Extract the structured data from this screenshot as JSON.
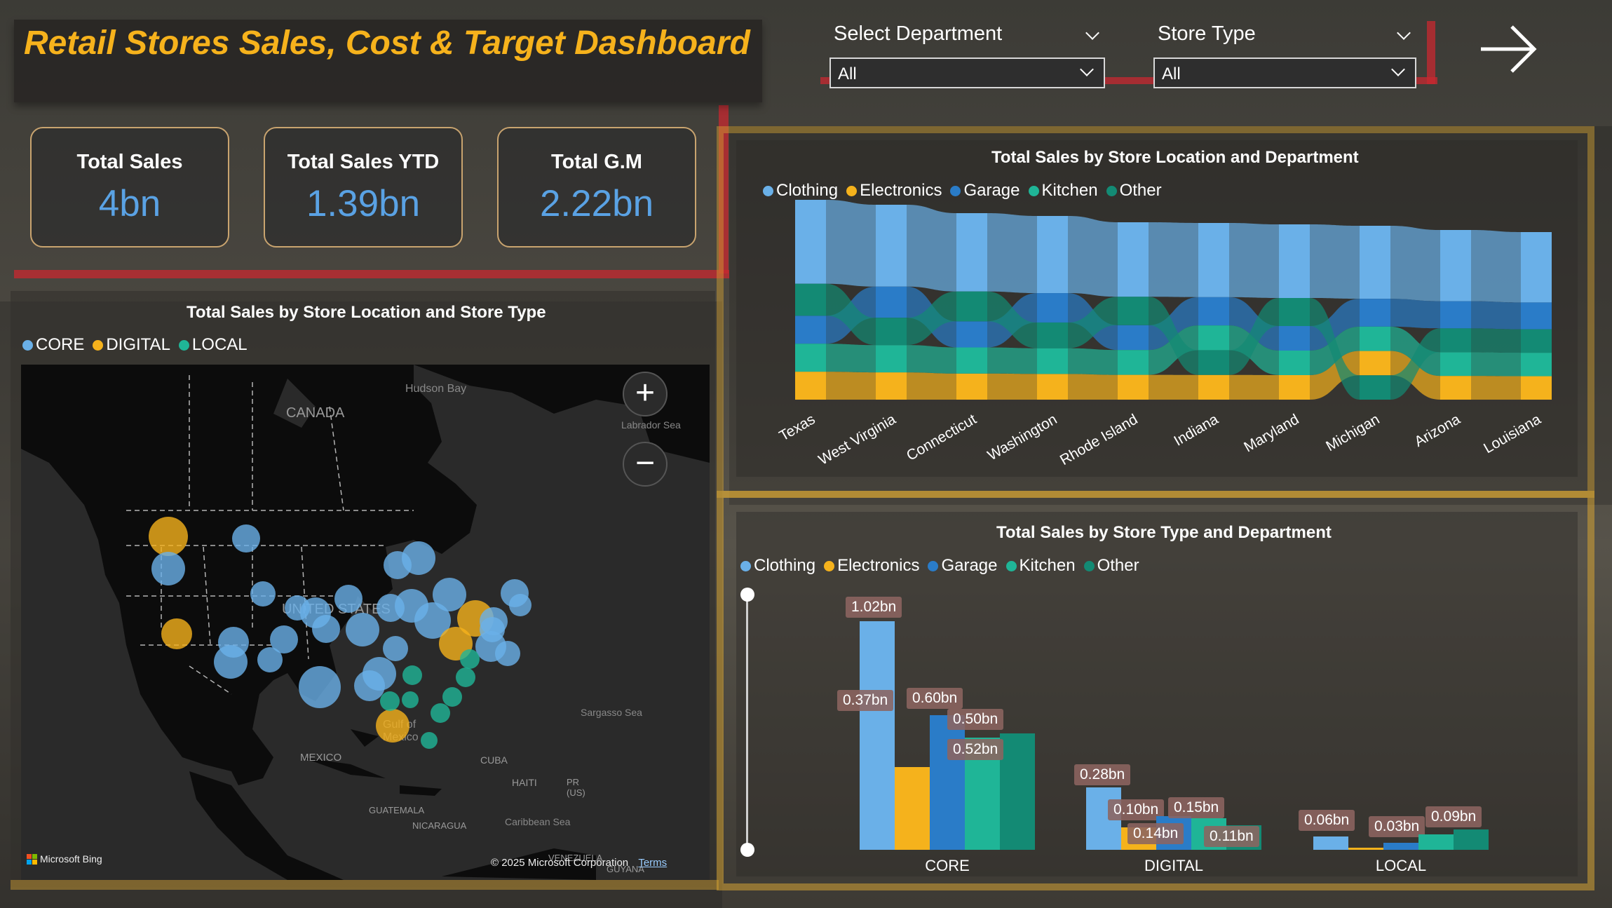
{
  "header": {
    "title": "Retail Stores Sales, Cost & Target Dashboard"
  },
  "filters": [
    {
      "label": "Select Department",
      "value": "All"
    },
    {
      "label": "Store Type",
      "value": "All"
    }
  ],
  "nav": {
    "icon": "arrow-right-icon"
  },
  "kpis": [
    {
      "label": "Total Sales",
      "value": "4bn"
    },
    {
      "label": "Total Sales YTD",
      "value": "1.39bn"
    },
    {
      "label": "Total G.M",
      "value": "2.22bn"
    }
  ],
  "map": {
    "title": "Total Sales by Store Location and Store Type",
    "legend": [
      {
        "name": "CORE",
        "color": "#6ab0e8"
      },
      {
        "name": "DIGITAL",
        "color": "#f5b21c"
      },
      {
        "name": "LOCAL",
        "color": "#1fb597"
      }
    ],
    "labels": {
      "hudson": "Hudson Bay",
      "canada": "CANADA",
      "labrador": "Labrador Sea",
      "us": "UNITED STATES",
      "gulf": "Gulf of Mexico",
      "mexico": "MEXICO",
      "cuba": "CUBA",
      "haiti": "HAITI",
      "pr": "PR (US)",
      "sargasso": "Sargasso Sea",
      "guatemala": "GUATEMALA",
      "nicaragua": "NICARAGUA",
      "caribbean": "Caribbean Sea",
      "venezuela": "VENEZUELA",
      "guyana": "GUYANA"
    },
    "zoom_in": "+",
    "zoom_out": "−",
    "brand": "Microsoft Bing",
    "copyright": "© 2025 Microsoft Corporation",
    "terms": "Terms"
  },
  "ribbon": {
    "title": "Total Sales by Store Location and Department",
    "legend": [
      {
        "name": "Clothing",
        "color": "#6ab0e8"
      },
      {
        "name": "Electronics",
        "color": "#f5b21c"
      },
      {
        "name": "Garage",
        "color": "#2a7cc8"
      },
      {
        "name": "Kitchen",
        "color": "#1fb597"
      },
      {
        "name": "Other",
        "color": "#138a74"
      }
    ],
    "categories": [
      "Texas",
      "West Virginia",
      "Connecticut",
      "Washington",
      "Rhode Island",
      "Indiana",
      "Maryland",
      "Michigan",
      "Arizona",
      "Louisiana"
    ]
  },
  "chart_data": {
    "type": "bar",
    "title": "Total Sales by Store Type and Department",
    "categories": [
      "CORE",
      "DIGITAL",
      "LOCAL"
    ],
    "series": [
      {
        "name": "Clothing",
        "color": "#6ab0e8",
        "values": [
          1.02,
          0.28,
          0.06
        ],
        "labels": [
          "1.02bn",
          "0.28bn",
          "0.06bn"
        ]
      },
      {
        "name": "Electronics",
        "color": "#f5b21c",
        "values": [
          0.37,
          0.1,
          0.005
        ],
        "labels": [
          "0.37bn",
          "0.10bn",
          ""
        ]
      },
      {
        "name": "Garage",
        "color": "#2a7cc8",
        "values": [
          0.6,
          0.15,
          0.03
        ],
        "labels": [
          "0.60bn",
          "0.15bn",
          "0.03bn"
        ]
      },
      {
        "name": "Kitchen",
        "color": "#1fb597",
        "values": [
          0.5,
          0.14,
          0.07
        ],
        "labels": [
          "0.50bn",
          "0.14bn",
          ""
        ]
      },
      {
        "name": "Other",
        "color": "#138a74",
        "values": [
          0.52,
          0.11,
          0.09
        ],
        "labels": [
          "0.52bn",
          "0.11bn",
          "0.09bn"
        ]
      }
    ],
    "ylim": [
      0,
      1.1
    ]
  }
}
